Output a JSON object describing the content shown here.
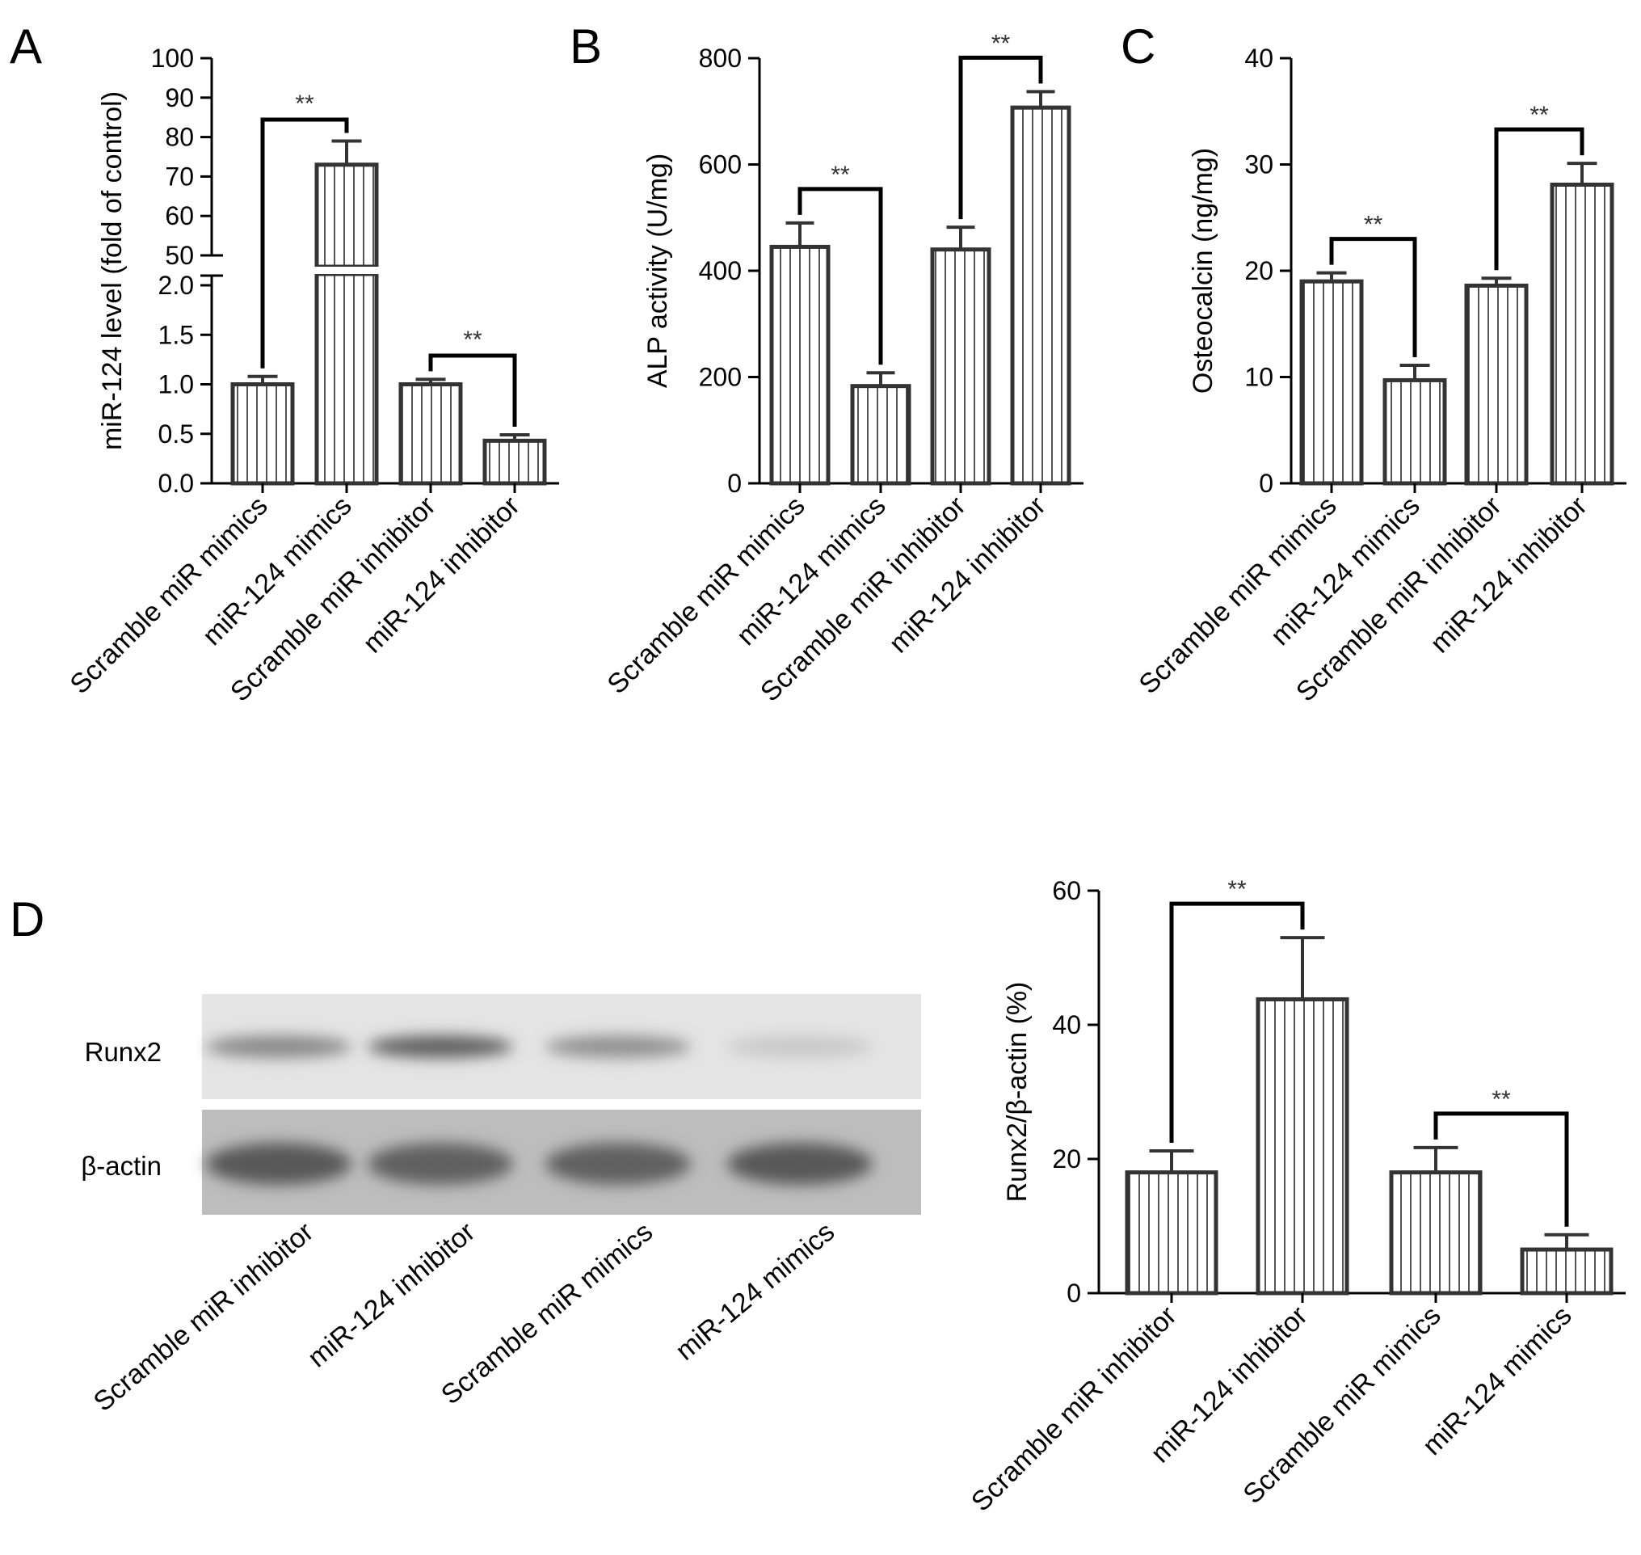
{
  "panels": [
    {
      "letter": "A"
    },
    {
      "letter": "B"
    },
    {
      "letter": "C"
    },
    {
      "letter": "D"
    }
  ],
  "chart_data": [
    {
      "panel": "A",
      "type": "bar",
      "categories": [
        "Scramble miR mimics",
        "miR-124 mimics",
        "Scramble miR inhibitor",
        "miR-124 inhibitor"
      ],
      "values": [
        1.0,
        73,
        1.0,
        0.43
      ],
      "errors": [
        0.08,
        6,
        0.05,
        0.06
      ],
      "ylabel": "miR-124 level (fold of control)",
      "y_axis": "broken",
      "ylim_lower": [
        0,
        2.0
      ],
      "ylim_upper": [
        50,
        100
      ],
      "yticks_lower": [
        "0.0",
        "0.5",
        "1.0",
        "1.5",
        "2.0"
      ],
      "yticks_upper": [
        "50",
        "60",
        "70",
        "80",
        "90",
        "100"
      ],
      "bar_pattern": "vertical-hatch",
      "significance": [
        {
          "from": 0,
          "to": 1,
          "label": "**"
        },
        {
          "from": 2,
          "to": 3,
          "label": "**"
        }
      ]
    },
    {
      "panel": "B",
      "type": "bar",
      "categories": [
        "Scramble miR mimics",
        "miR-124 mimics",
        "Scramble miR inhibitor",
        "miR-124 inhibitor"
      ],
      "values": [
        445,
        183,
        440,
        707
      ],
      "errors": [
        45,
        25,
        42,
        30
      ],
      "ylabel": "ALP activity (U/mg)",
      "ylim": [
        0,
        800
      ],
      "yticks": [
        "0",
        "200",
        "400",
        "600",
        "800"
      ],
      "bar_pattern": "vertical-hatch",
      "significance": [
        {
          "from": 0,
          "to": 1,
          "label": "**"
        },
        {
          "from": 2,
          "to": 3,
          "label": "**"
        }
      ]
    },
    {
      "panel": "C",
      "type": "bar",
      "categories": [
        "Scramble miR mimics",
        "miR-124 mimics",
        "Scramble miR inhibitor",
        "miR-124 inhibitor"
      ],
      "values": [
        19.0,
        9.7,
        18.6,
        28.1
      ],
      "errors": [
        0.8,
        1.4,
        0.7,
        2.0
      ],
      "ylabel": "Osteocalcin (ng/mg)",
      "ylim": [
        0,
        40
      ],
      "yticks": [
        "0",
        "10",
        "20",
        "30",
        "40"
      ],
      "bar_pattern": "vertical-hatch",
      "significance": [
        {
          "from": 0,
          "to": 1,
          "label": "**"
        },
        {
          "from": 2,
          "to": 3,
          "label": "**"
        }
      ]
    },
    {
      "panel": "D",
      "type": "bar",
      "categories": [
        "Scramble miR inhibitor",
        "miR-124 inhibitor",
        "Scramble miR mimics",
        "miR-124 mimics"
      ],
      "values": [
        18.0,
        43.8,
        18.0,
        6.5
      ],
      "errors": [
        3.2,
        9.2,
        3.7,
        2.2
      ],
      "ylabel": "Runx2/β-actin (%)",
      "ylim": [
        0,
        60
      ],
      "yticks": [
        "0",
        "20",
        "40",
        "60"
      ],
      "bar_pattern": "vertical-hatch",
      "significance": [
        {
          "from": 0,
          "to": 1,
          "label": "**"
        },
        {
          "from": 2,
          "to": 3,
          "label": "**"
        }
      ]
    }
  ],
  "western_blot": {
    "rows": [
      {
        "label": "Runx2",
        "band_intensity": [
          0.55,
          0.8,
          0.5,
          0.15
        ]
      },
      {
        "label": "β-actin",
        "band_intensity": [
          0.85,
          0.8,
          0.8,
          0.85
        ]
      }
    ],
    "lanes": [
      "Scramble miR inhibitor",
      "miR-124 inhibitor",
      "Scramble miR mimics",
      "miR-124 mimics"
    ]
  }
}
